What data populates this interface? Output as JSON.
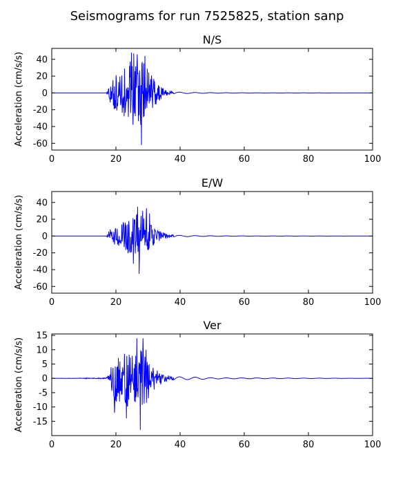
{
  "chart_data": {
    "type": "line",
    "title": "Seismograms for run 7525825, station sanp",
    "panels": [
      {
        "title": "N/S",
        "ylabel": "Acceleration (cm/s/s)",
        "xlim": [
          0,
          100
        ],
        "ylim": [
          -68,
          53
        ],
        "xticks": [
          0,
          20,
          40,
          60,
          80,
          100
        ],
        "yticks": [
          -60,
          -40,
          -20,
          0,
          20,
          40
        ],
        "envelope": [
          {
            "t": 0,
            "a": 0
          },
          {
            "t": 17,
            "a": 0
          },
          {
            "t": 17.5,
            "a": 4
          },
          {
            "t": 18,
            "a": 12
          },
          {
            "t": 19,
            "a": 18
          },
          {
            "t": 20,
            "a": 22
          },
          {
            "t": 21,
            "a": 25
          },
          {
            "t": 22,
            "a": 28
          },
          {
            "t": 23,
            "a": 30
          },
          {
            "t": 24,
            "a": 36
          },
          {
            "t": 25,
            "a": 40
          },
          {
            "t": 26,
            "a": 42
          },
          {
            "t": 27,
            "a": 40
          },
          {
            "t": 28,
            "a": 38
          },
          {
            "t": 29,
            "a": 35
          },
          {
            "t": 30,
            "a": 30
          },
          {
            "t": 31,
            "a": 22
          },
          {
            "t": 32,
            "a": 16
          },
          {
            "t": 33,
            "a": 12
          },
          {
            "t": 34,
            "a": 8
          },
          {
            "t": 35,
            "a": 5
          },
          {
            "t": 36,
            "a": 3
          },
          {
            "t": 38,
            "a": 1.5
          },
          {
            "t": 40,
            "a": 0.8
          },
          {
            "t": 45,
            "a": 0.5
          },
          {
            "t": 55,
            "a": 0.2
          },
          {
            "t": 100,
            "a": 0
          }
        ],
        "peaks": [
          {
            "t": 24.2,
            "v": 32
          },
          {
            "t": 24.8,
            "v": 48
          },
          {
            "t": 25.6,
            "v": 47
          },
          {
            "t": 26.6,
            "v": 46
          },
          {
            "t": 27.7,
            "v": -38
          },
          {
            "t": 28.0,
            "v": -62
          },
          {
            "t": 29.0,
            "v": 44
          },
          {
            "t": 25.3,
            "v": -38
          }
        ]
      },
      {
        "title": "E/W",
        "ylabel": "Acceleration (cm/s/s)",
        "xlim": [
          0,
          100
        ],
        "ylim": [
          -68,
          53
        ],
        "xticks": [
          0,
          20,
          40,
          60,
          80,
          100
        ],
        "yticks": [
          -60,
          -40,
          -20,
          0,
          20,
          40
        ],
        "envelope": [
          {
            "t": 0,
            "a": 0
          },
          {
            "t": 17,
            "a": 0
          },
          {
            "t": 17.5,
            "a": 3
          },
          {
            "t": 18,
            "a": 8
          },
          {
            "t": 19,
            "a": 10
          },
          {
            "t": 20,
            "a": 12
          },
          {
            "t": 21,
            "a": 14
          },
          {
            "t": 22,
            "a": 16
          },
          {
            "t": 23,
            "a": 18
          },
          {
            "t": 24,
            "a": 22
          },
          {
            "t": 25,
            "a": 24
          },
          {
            "t": 26,
            "a": 26
          },
          {
            "t": 27,
            "a": 27
          },
          {
            "t": 28,
            "a": 24
          },
          {
            "t": 29,
            "a": 20
          },
          {
            "t": 30,
            "a": 17
          },
          {
            "t": 31,
            "a": 14
          },
          {
            "t": 32,
            "a": 11
          },
          {
            "t": 33,
            "a": 8
          },
          {
            "t": 34,
            "a": 6
          },
          {
            "t": 35,
            "a": 4
          },
          {
            "t": 36,
            "a": 3
          },
          {
            "t": 38,
            "a": 1.5
          },
          {
            "t": 40,
            "a": 0.8
          },
          {
            "t": 45,
            "a": 0.5
          },
          {
            "t": 55,
            "a": 0.2
          },
          {
            "t": 100,
            "a": 0
          }
        ],
        "peaks": [
          {
            "t": 26.8,
            "v": 35
          },
          {
            "t": 27.3,
            "v": -45
          },
          {
            "t": 28.3,
            "v": 30
          },
          {
            "t": 29.5,
            "v": 33
          },
          {
            "t": 30.5,
            "v": 27
          },
          {
            "t": 25.5,
            "v": -33
          }
        ]
      },
      {
        "title": "Ver",
        "ylabel": "Acceleration (cm/s/s)",
        "xlim": [
          0,
          100
        ],
        "ylim": [
          -20,
          15.5
        ],
        "xticks": [
          0,
          20,
          40,
          60,
          80,
          100
        ],
        "yticks": [
          -15,
          -10,
          -5,
          0,
          5,
          10,
          15
        ],
        "envelope": [
          {
            "t": 0,
            "a": 0
          },
          {
            "t": 10,
            "a": 0.1
          },
          {
            "t": 11,
            "a": 0.3
          },
          {
            "t": 12,
            "a": 0.1
          },
          {
            "t": 17,
            "a": 0.2
          },
          {
            "t": 17.5,
            "a": 1
          },
          {
            "t": 18,
            "a": 3
          },
          {
            "t": 19,
            "a": 6
          },
          {
            "t": 20,
            "a": 8
          },
          {
            "t": 21,
            "a": 9
          },
          {
            "t": 22,
            "a": 9
          },
          {
            "t": 23,
            "a": 10
          },
          {
            "t": 24,
            "a": 10
          },
          {
            "t": 25,
            "a": 10
          },
          {
            "t": 26,
            "a": 10
          },
          {
            "t": 27,
            "a": 11
          },
          {
            "t": 28,
            "a": 11
          },
          {
            "t": 29,
            "a": 10
          },
          {
            "t": 30,
            "a": 8
          },
          {
            "t": 31,
            "a": 6
          },
          {
            "t": 32,
            "a": 4
          },
          {
            "t": 33,
            "a": 3
          },
          {
            "t": 34,
            "a": 2
          },
          {
            "t": 35,
            "a": 1.5
          },
          {
            "t": 37,
            "a": 0.8
          },
          {
            "t": 40,
            "a": 0.5
          },
          {
            "t": 45,
            "a": 0.4
          },
          {
            "t": 50,
            "a": 0.2
          },
          {
            "t": 100,
            "a": 0
          }
        ],
        "peaks": [
          {
            "t": 26.5,
            "v": 14
          },
          {
            "t": 27.6,
            "v": -18
          },
          {
            "t": 28.4,
            "v": 14
          },
          {
            "t": 29.4,
            "v": 10
          },
          {
            "t": 23.3,
            "v": -14
          },
          {
            "t": 19.5,
            "v": -12
          }
        ]
      }
    ]
  }
}
